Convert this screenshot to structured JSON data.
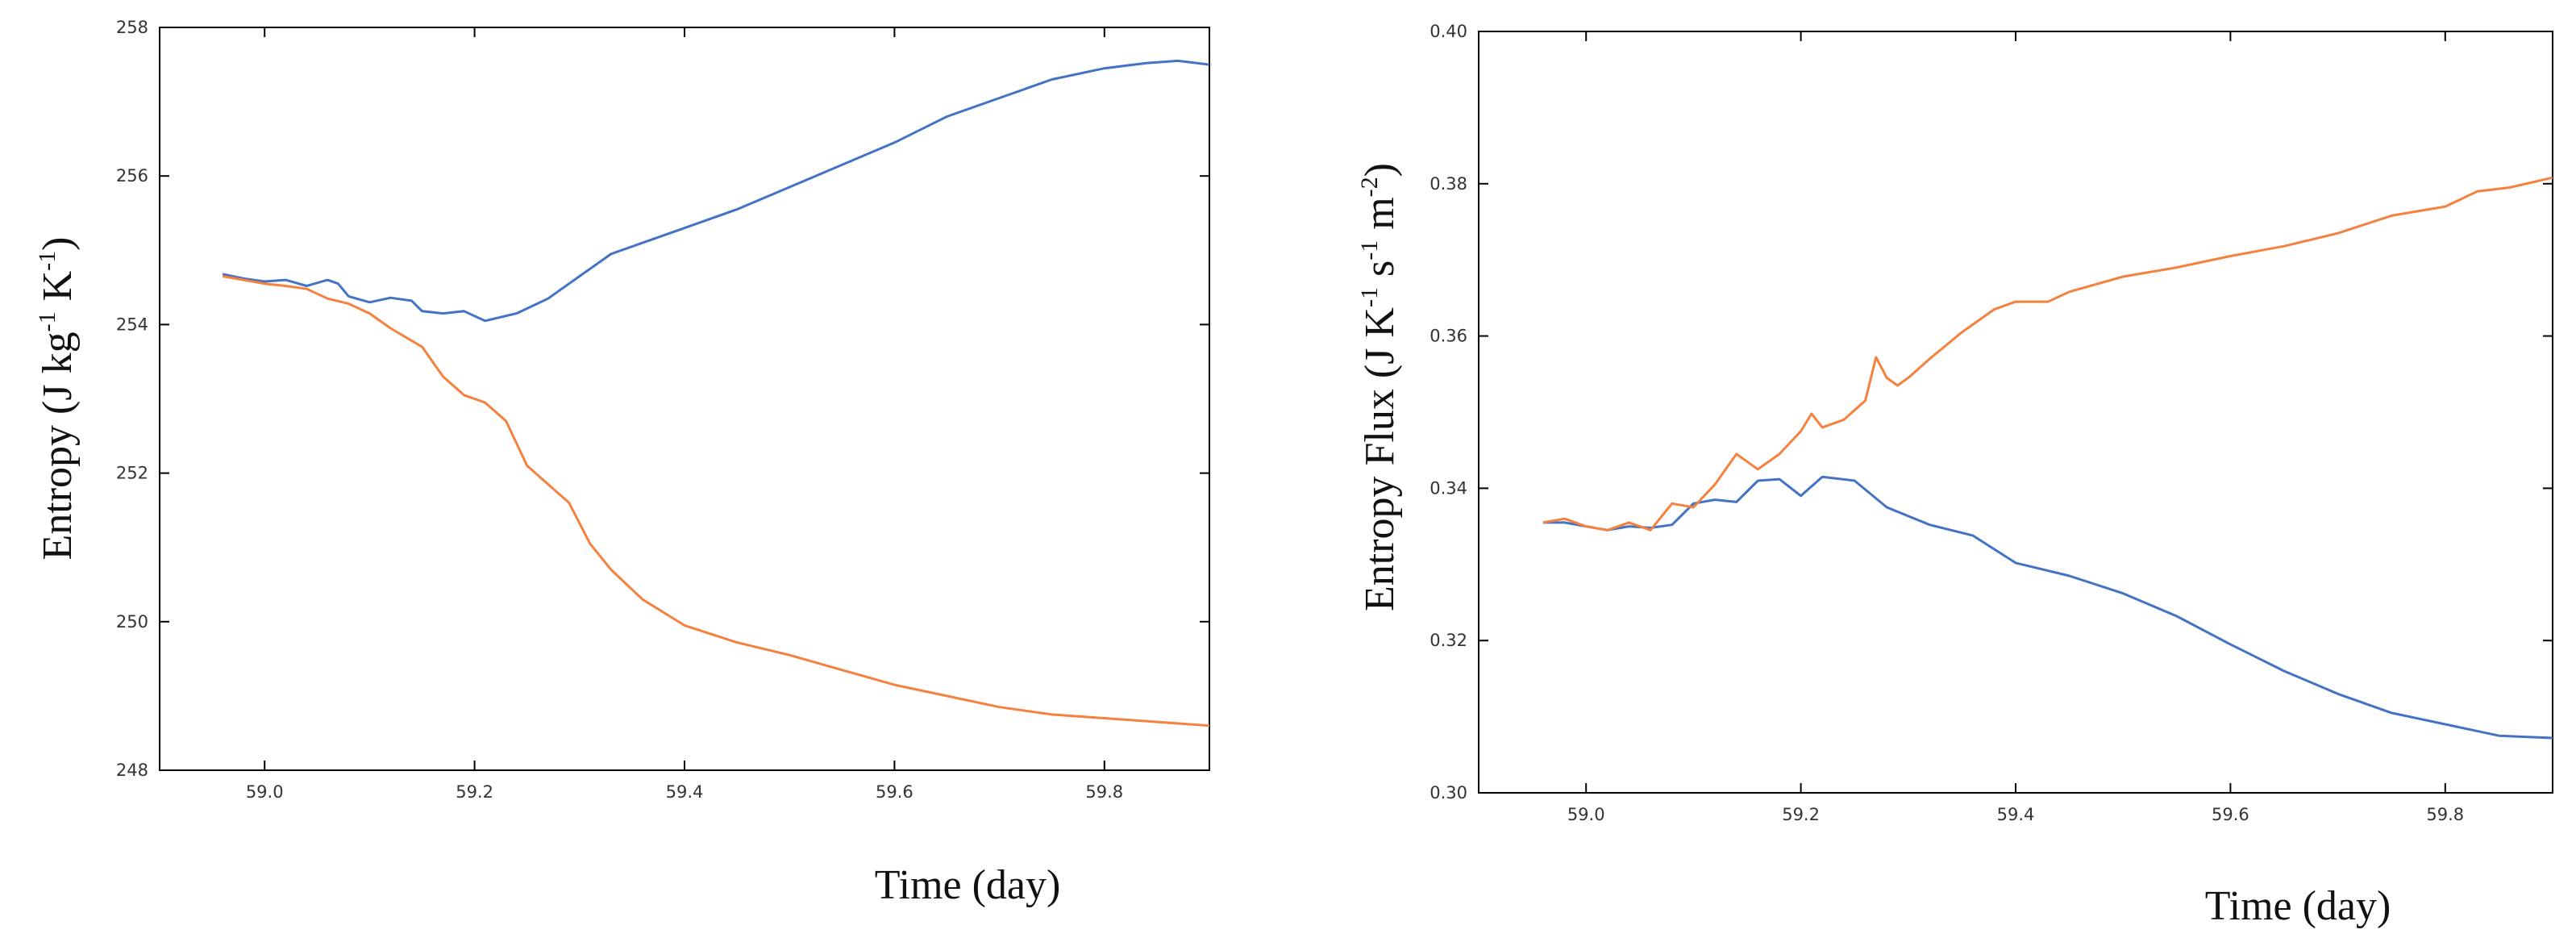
{
  "chart_data": [
    {
      "type": "line",
      "title": "",
      "xlabel": "Time (day)",
      "ylabel": {
        "main": "Entropy (J kg",
        "sup1": "-1",
        "mid": " K",
        "sup2": "-1",
        "end": ")"
      },
      "xlim": [
        58.9,
        59.9
      ],
      "ylim": [
        248,
        258
      ],
      "xticks": [
        "59.0",
        "59.2",
        "59.4",
        "59.6",
        "59.8"
      ],
      "yticks": [
        "248",
        "250",
        "252",
        "254",
        "256",
        "258"
      ],
      "grid": false,
      "series": [
        {
          "name": "blue",
          "color": "#4472c4",
          "x": [
            58.96,
            58.98,
            59.0,
            59.02,
            59.04,
            59.06,
            59.07,
            59.08,
            59.1,
            59.12,
            59.14,
            59.15,
            59.17,
            59.19,
            59.21,
            59.24,
            59.27,
            59.3,
            59.33,
            59.36,
            59.4,
            59.45,
            59.5,
            59.55,
            59.6,
            59.65,
            59.7,
            59.75,
            59.8,
            59.84,
            59.87,
            59.9
          ],
          "y": [
            254.68,
            254.62,
            254.58,
            254.6,
            254.52,
            254.6,
            254.55,
            254.38,
            254.3,
            254.36,
            254.32,
            254.18,
            254.15,
            254.18,
            254.05,
            254.15,
            254.35,
            254.65,
            254.95,
            255.1,
            255.3,
            255.55,
            255.85,
            256.15,
            256.45,
            256.8,
            257.05,
            257.3,
            257.45,
            257.52,
            257.55,
            257.5
          ]
        },
        {
          "name": "orange",
          "color": "#f4813e",
          "x": [
            58.96,
            58.98,
            59.0,
            59.02,
            59.04,
            59.06,
            59.08,
            59.1,
            59.12,
            59.15,
            59.17,
            59.19,
            59.21,
            59.23,
            59.25,
            59.27,
            59.29,
            59.31,
            59.33,
            59.36,
            59.4,
            59.45,
            59.5,
            59.55,
            59.6,
            59.65,
            59.7,
            59.75,
            59.8,
            59.85,
            59.9
          ],
          "y": [
            254.65,
            254.6,
            254.55,
            254.52,
            254.48,
            254.35,
            254.28,
            254.15,
            253.95,
            253.7,
            253.3,
            253.05,
            252.95,
            252.7,
            252.1,
            251.85,
            251.6,
            251.05,
            250.7,
            250.3,
            249.95,
            249.72,
            249.55,
            249.35,
            249.15,
            249.0,
            248.85,
            248.75,
            248.7,
            248.65,
            248.6
          ]
        }
      ]
    },
    {
      "type": "line",
      "title": "",
      "xlabel": "Time (day)",
      "ylabel": {
        "main": "Entropy Flux (J K",
        "sup1": "-1",
        "mid": " s",
        "sup2": "-1",
        "mid2": " m",
        "sup3": "-2",
        "end": ")"
      },
      "xlim": [
        58.9,
        59.9
      ],
      "ylim": [
        0.3,
        0.4
      ],
      "xticks": [
        "59.0",
        "59.2",
        "59.4",
        "59.6",
        "59.8"
      ],
      "yticks": [
        "0.30",
        "0.32",
        "0.34",
        "0.36",
        "0.38",
        "0.40"
      ],
      "grid": false,
      "series": [
        {
          "name": "blue",
          "color": "#4472c4",
          "x": [
            58.96,
            58.98,
            59.0,
            59.02,
            59.04,
            59.06,
            59.08,
            59.1,
            59.12,
            59.14,
            59.16,
            59.18,
            59.2,
            59.22,
            59.25,
            59.28,
            59.32,
            59.36,
            59.4,
            59.45,
            59.5,
            59.55,
            59.6,
            59.65,
            59.7,
            59.75,
            59.8,
            59.85,
            59.9
          ],
          "y": [
            0.3355,
            0.3355,
            0.335,
            0.3345,
            0.335,
            0.3348,
            0.3352,
            0.338,
            0.3385,
            0.3382,
            0.341,
            0.3412,
            0.339,
            0.3415,
            0.341,
            0.3375,
            0.3352,
            0.3338,
            0.3302,
            0.3285,
            0.3262,
            0.3232,
            0.3195,
            0.316,
            0.313,
            0.3105,
            0.309,
            0.3075,
            0.3072
          ]
        },
        {
          "name": "orange",
          "color": "#f4813e",
          "x": [
            58.96,
            58.98,
            59.0,
            59.02,
            59.04,
            59.06,
            59.08,
            59.1,
            59.12,
            59.14,
            59.16,
            59.18,
            59.2,
            59.21,
            59.22,
            59.24,
            59.26,
            59.27,
            59.28,
            59.29,
            59.3,
            59.32,
            59.35,
            59.38,
            59.4,
            59.43,
            59.45,
            59.5,
            59.55,
            59.6,
            59.65,
            59.7,
            59.75,
            59.8,
            59.83,
            59.86,
            59.9
          ],
          "y": [
            0.3355,
            0.336,
            0.335,
            0.3345,
            0.3355,
            0.3345,
            0.338,
            0.3375,
            0.3405,
            0.3445,
            0.3425,
            0.3445,
            0.3475,
            0.3498,
            0.348,
            0.349,
            0.3515,
            0.3572,
            0.3545,
            0.3535,
            0.3545,
            0.357,
            0.3605,
            0.3635,
            0.3645,
            0.3645,
            0.3658,
            0.3678,
            0.369,
            0.3705,
            0.3718,
            0.3735,
            0.3758,
            0.377,
            0.379,
            0.3795,
            0.3808
          ]
        }
      ]
    }
  ]
}
